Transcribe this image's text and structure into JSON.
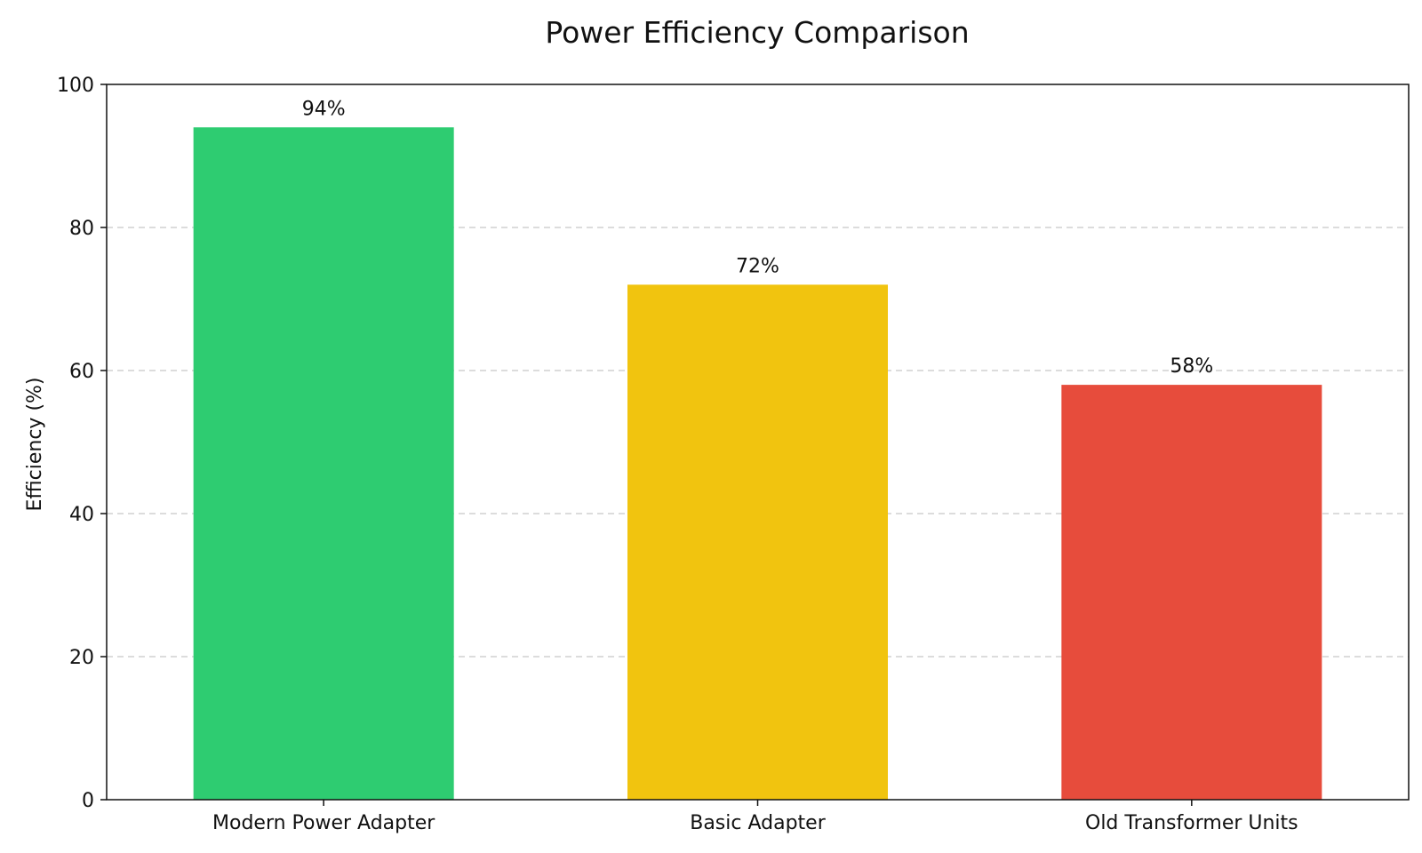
{
  "chart_data": {
    "type": "bar",
    "title": "Power Efficiency Comparison",
    "xlabel": "",
    "ylabel": "Efficiency (%)",
    "ylim": [
      0,
      100
    ],
    "yticks": [
      0,
      20,
      40,
      60,
      80,
      100
    ],
    "grid": true,
    "categories": [
      "Modern Power Adapter",
      "Basic Adapter",
      "Old Transformer Units"
    ],
    "values": [
      94,
      72,
      58
    ],
    "value_labels": [
      "94%",
      "72%",
      "58%"
    ],
    "colors": [
      "#2ecc71",
      "#f1c40f",
      "#e74c3c"
    ]
  }
}
